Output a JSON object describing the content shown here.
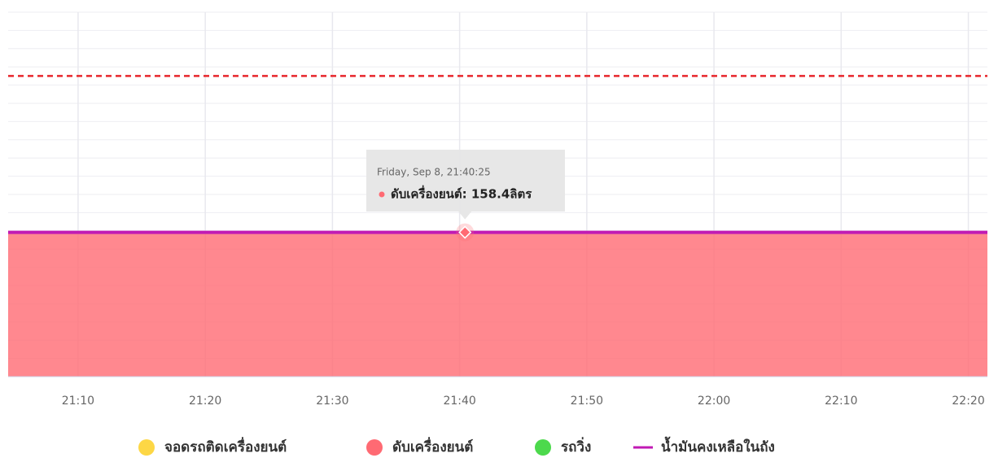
{
  "chart_data": {
    "type": "area",
    "x": [
      1264.5,
      1300.42,
      1341.5
    ],
    "xlim": [
      1264.5,
      1341.5
    ],
    "xticks": [
      {
        "value": 1270,
        "label": "21:10"
      },
      {
        "value": 1280,
        "label": "21:20"
      },
      {
        "value": 1290,
        "label": "21:30"
      },
      {
        "value": 1300,
        "label": "21:40"
      },
      {
        "value": 1310,
        "label": "21:50"
      },
      {
        "value": 1320,
        "label": "22:00"
      },
      {
        "value": 1330,
        "label": "22:10"
      },
      {
        "value": 1340,
        "label": "22:20"
      }
    ],
    "ylim": [
      0,
      400
    ],
    "yticks": [
      0,
      20,
      40,
      60,
      80,
      100,
      120,
      140,
      160,
      180,
      200,
      220,
      240,
      260,
      280,
      300,
      320,
      340,
      360,
      380,
      400
    ],
    "grid": true,
    "threshold": {
      "value": 330,
      "color": "#e8262b"
    },
    "series": [
      {
        "name": "จอดรถติดเครื่องยนต์",
        "color": "#fdd745",
        "kind": "area",
        "values": [
          null,
          null,
          null
        ]
      },
      {
        "name": "ดับเครื่องยนต์",
        "color": "#ff6a73",
        "kind": "area",
        "values": [
          158.4,
          158.4,
          158.4
        ]
      },
      {
        "name": "รถวิ่ง",
        "color": "#4cd94c",
        "kind": "area",
        "values": [
          null,
          null,
          null
        ]
      },
      {
        "name": "น้ำมันคงเหลือในถัง",
        "color": "#c11ab4",
        "kind": "line",
        "values": [
          158.4,
          158.4,
          158.4
        ]
      }
    ],
    "tooltip": {
      "title": "Friday, Sep 8, 21:40:25",
      "text": "ดับเครื่องยนต์: 158.4ลิตร"
    }
  }
}
